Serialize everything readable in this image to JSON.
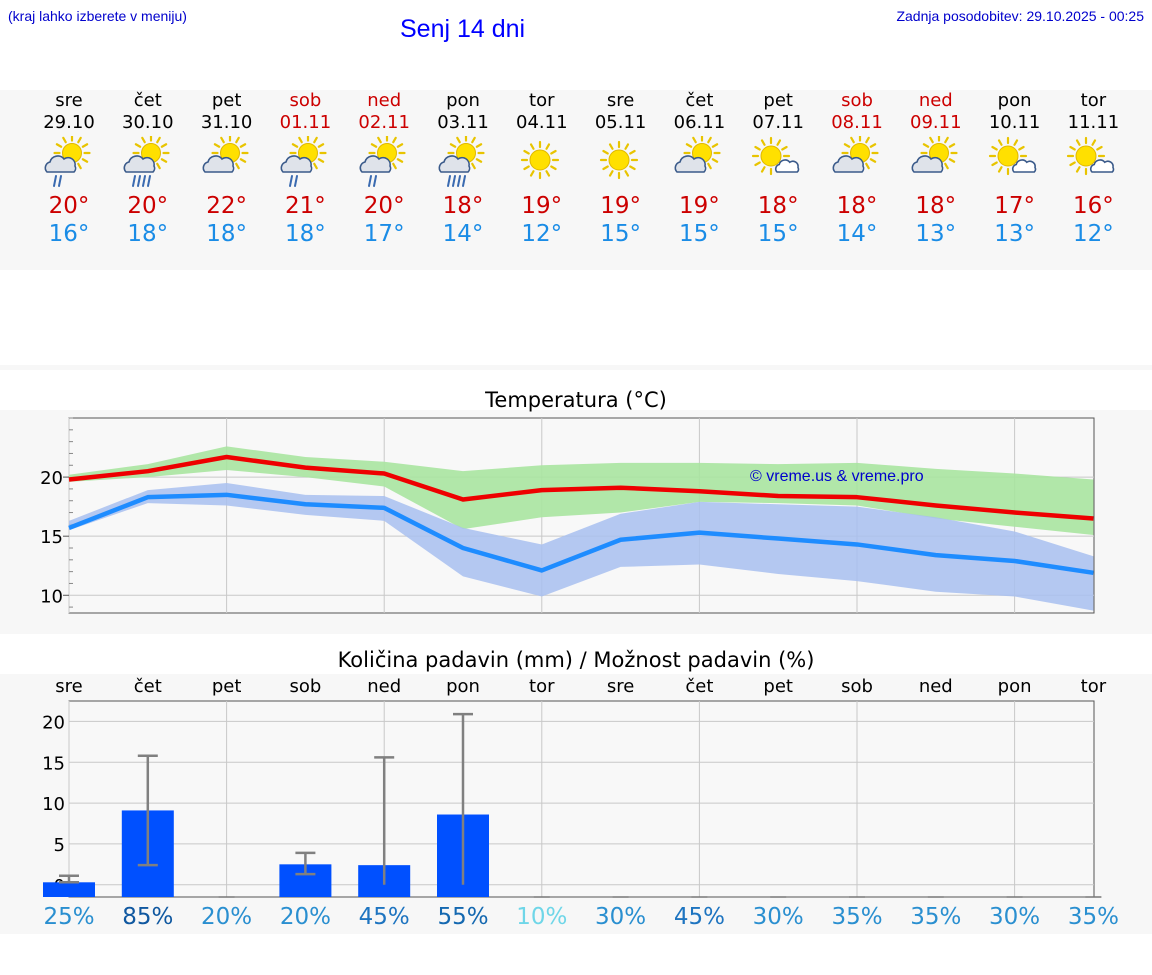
{
  "header": {
    "hint": "(kraj lahko izberete v meniju)",
    "title": "Senj 14 dni",
    "updated": "Zadnja posodobitev: 29.10.2025 - 00:25"
  },
  "days": [
    {
      "name": "sre",
      "date": "29.10",
      "weekend": false,
      "icon": "sun-cloud-rain-icon",
      "max": "20°",
      "min": "16°"
    },
    {
      "name": "čet",
      "date": "30.10",
      "weekend": false,
      "icon": "sun-cloud-heavy-rain-icon",
      "max": "20°",
      "min": "18°"
    },
    {
      "name": "pet",
      "date": "31.10",
      "weekend": false,
      "icon": "sun-cloud-icon",
      "max": "22°",
      "min": "18°"
    },
    {
      "name": "sob",
      "date": "01.11",
      "weekend": true,
      "icon": "sun-cloud-rain-icon",
      "max": "21°",
      "min": "18°"
    },
    {
      "name": "ned",
      "date": "02.11",
      "weekend": true,
      "icon": "sun-cloud-rain-icon",
      "max": "20°",
      "min": "17°"
    },
    {
      "name": "pon",
      "date": "03.11",
      "weekend": false,
      "icon": "sun-cloud-heavy-rain-icon",
      "max": "18°",
      "min": "14°"
    },
    {
      "name": "tor",
      "date": "04.11",
      "weekend": false,
      "icon": "sun-icon",
      "max": "19°",
      "min": "12°"
    },
    {
      "name": "sre",
      "date": "05.11",
      "weekend": false,
      "icon": "sun-icon",
      "max": "19°",
      "min": "15°"
    },
    {
      "name": "čet",
      "date": "06.11",
      "weekend": false,
      "icon": "sun-cloud-icon",
      "max": "19°",
      "min": "15°"
    },
    {
      "name": "pet",
      "date": "07.11",
      "weekend": false,
      "icon": "sun-small-cloud-icon",
      "max": "18°",
      "min": "15°"
    },
    {
      "name": "sob",
      "date": "08.11",
      "weekend": true,
      "icon": "sun-cloud-icon",
      "max": "18°",
      "min": "14°"
    },
    {
      "name": "ned",
      "date": "09.11",
      "weekend": true,
      "icon": "sun-cloud-icon",
      "max": "18°",
      "min": "13°"
    },
    {
      "name": "pon",
      "date": "10.11",
      "weekend": false,
      "icon": "sun-small-cloud-icon",
      "max": "17°",
      "min": "13°"
    },
    {
      "name": "tor",
      "date": "11.11",
      "weekend": false,
      "icon": "sun-small-cloud-icon",
      "max": "16°",
      "min": "12°"
    }
  ],
  "colors": {
    "max": "#ee0000",
    "min": "#1e8cff",
    "max_band": "#a8e4a0",
    "min_band": "#a8c0f0",
    "overlap_band": "#7cc4a0",
    "bar": "#0050ff",
    "whisker": "#808080"
  },
  "chart_data": [
    {
      "type": "line",
      "title": "Temperatura (°C)",
      "watermark": "© vreme.us & vreme.pro",
      "categories": [
        "sre",
        "čet",
        "pet",
        "sob",
        "ned",
        "pon",
        "tor",
        "sre",
        "čet",
        "pet",
        "sob",
        "ned",
        "pon",
        "tor"
      ],
      "ylim": [
        8.5,
        25
      ],
      "yticks": [
        10,
        15,
        20
      ],
      "series": [
        {
          "name": "max",
          "values": [
            19.8,
            20.5,
            21.7,
            20.8,
            20.3,
            18.1,
            18.9,
            19.1,
            18.8,
            18.4,
            18.3,
            17.6,
            17.0,
            16.5
          ],
          "band_low": [
            19.6,
            20.0,
            20.6,
            20.0,
            19.2,
            15.6,
            16.6,
            17.0,
            17.9,
            17.8,
            17.6,
            16.5,
            15.8,
            15.1
          ],
          "band_high": [
            20.2,
            21.1,
            22.6,
            21.7,
            21.3,
            20.5,
            21.0,
            21.2,
            21.2,
            21.1,
            21.2,
            20.7,
            20.3,
            19.8
          ]
        },
        {
          "name": "min",
          "values": [
            15.7,
            18.3,
            18.5,
            17.7,
            17.4,
            14.0,
            12.1,
            14.7,
            15.3,
            14.8,
            14.3,
            13.4,
            12.9,
            11.9
          ],
          "band_low": [
            15.5,
            17.8,
            17.6,
            16.8,
            16.3,
            11.6,
            9.9,
            12.4,
            12.6,
            11.8,
            11.2,
            10.3,
            9.9,
            8.7
          ],
          "band_high": [
            16.3,
            18.9,
            19.5,
            18.5,
            18.4,
            15.7,
            14.3,
            16.9,
            17.9,
            17.7,
            17.5,
            16.6,
            15.4,
            13.3
          ]
        }
      ]
    },
    {
      "type": "bar",
      "title": "Količina padavin (mm) / Možnost padavin (%)",
      "categories": [
        "sre",
        "čet",
        "pet",
        "sob",
        "ned",
        "pon",
        "tor",
        "sre",
        "čet",
        "pet",
        "sob",
        "ned",
        "pon",
        "tor"
      ],
      "ylim": [
        -1.5,
        22.5
      ],
      "yticks": [
        0,
        5,
        10,
        15,
        20
      ],
      "values": [
        0.3,
        9.1,
        0,
        2.5,
        2.4,
        8.6,
        0,
        0,
        0,
        0,
        0,
        0,
        0,
        0
      ],
      "err_low": [
        0.3,
        2.4,
        0,
        1.3,
        0,
        0,
        0,
        0,
        0,
        0,
        0,
        0,
        0,
        0
      ],
      "err_high": [
        1.1,
        15.8,
        0,
        3.9,
        15.6,
        20.9,
        0,
        0,
        0,
        0,
        0,
        0,
        0,
        0
      ],
      "probability": [
        "25%",
        "85%",
        "20%",
        "20%",
        "45%",
        "55%",
        "10%",
        "30%",
        "45%",
        "30%",
        "35%",
        "35%",
        "30%",
        "35%"
      ],
      "probability_colors": [
        "#2a8fd0",
        "#1058a0",
        "#2a8fd0",
        "#2a8fd0",
        "#1e74c0",
        "#1468b0",
        "#6fd6e8",
        "#2a8fd0",
        "#1e74c0",
        "#2a8fd0",
        "#2a8fd0",
        "#2a8fd0",
        "#2a8fd0",
        "#2a8fd0"
      ]
    }
  ]
}
